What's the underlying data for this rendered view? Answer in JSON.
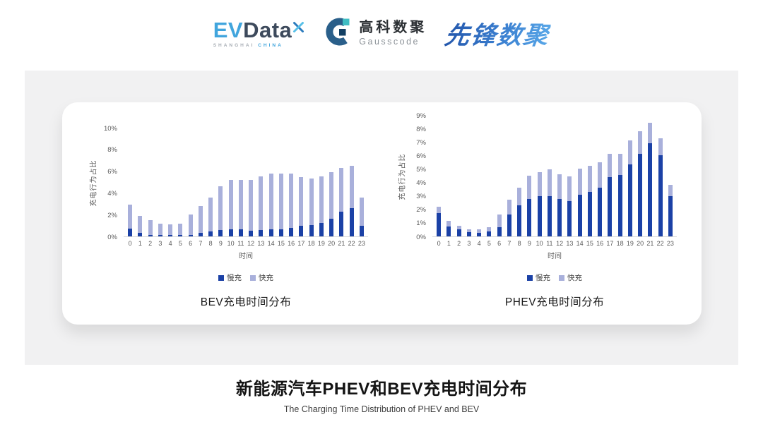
{
  "header": {
    "evdata": {
      "ev": "EV",
      "data": "Data",
      "sub_left": "SHANGHAI",
      "sub_right": "CHINA"
    },
    "gausscode": {
      "cn": "高科数聚",
      "en": "Gausscode"
    },
    "pioneer": "先锋数聚"
  },
  "footer": {
    "title": "新能源汽车PHEV和BEV充电时间分布",
    "subtitle": "The Charging Time Distribution of PHEV and BEV"
  },
  "colors": {
    "slow_charge": "#1b41a6",
    "fast_charge": "#a9b0db",
    "axis_line": "#d9d9d9",
    "band_background": "#f1f1f2"
  },
  "chart_data": [
    {
      "type": "bar",
      "stacked": true,
      "title": "BEV充电时间分布",
      "ylabel": "充电行为占比",
      "xlabel": "时间",
      "grid": false,
      "legend_position": "bottom",
      "ylim": [
        0,
        10
      ],
      "yticks": [
        "0%",
        "2%",
        "4%",
        "6%",
        "8%",
        "10%"
      ],
      "categories": [
        "0",
        "1",
        "2",
        "3",
        "4",
        "5",
        "6",
        "7",
        "8",
        "9",
        "10",
        "11",
        "12",
        "13",
        "14",
        "15",
        "16",
        "17",
        "18",
        "19",
        "20",
        "21",
        "22",
        "23"
      ],
      "series": [
        {
          "name": "慢充",
          "color": "#1b41a6",
          "values": [
            0.7,
            0.3,
            0.15,
            0.1,
            0.1,
            0.1,
            0.15,
            0.3,
            0.45,
            0.6,
            0.65,
            0.65,
            0.55,
            0.6,
            0.65,
            0.65,
            0.8,
            0.95,
            1.05,
            1.25,
            1.6,
            2.3,
            2.6,
            0.95
          ]
        },
        {
          "name": "快充",
          "color": "#a9b0db",
          "values": [
            2.2,
            1.6,
            1.35,
            1.1,
            1.0,
            1.1,
            1.85,
            2.5,
            3.15,
            4.0,
            4.55,
            4.55,
            4.65,
            4.95,
            5.15,
            5.1,
            5.0,
            4.5,
            4.25,
            4.3,
            4.3,
            4.0,
            3.9,
            2.6
          ]
        }
      ]
    },
    {
      "type": "bar",
      "stacked": true,
      "title": "PHEV充电时间分布",
      "ylabel": "充电行为占比",
      "xlabel": "时间",
      "grid": false,
      "legend_position": "bottom",
      "ylim": [
        0,
        9
      ],
      "yticks": [
        "0%",
        "1%",
        "2%",
        "3%",
        "4%",
        "5%",
        "6%",
        "7%",
        "8%",
        "9%"
      ],
      "categories": [
        "0",
        "1",
        "2",
        "3",
        "4",
        "5",
        "6",
        "7",
        "8",
        "9",
        "10",
        "11",
        "12",
        "13",
        "14",
        "15",
        "16",
        "17",
        "18",
        "19",
        "20",
        "21",
        "22",
        "23"
      ],
      "series": [
        {
          "name": "慢充",
          "color": "#1b41a6",
          "values": [
            1.75,
            0.75,
            0.5,
            0.3,
            0.25,
            0.35,
            0.7,
            1.6,
            2.3,
            2.8,
            3.0,
            3.0,
            2.8,
            2.6,
            3.1,
            3.3,
            3.6,
            4.4,
            4.55,
            5.35,
            6.1,
            6.9,
            6.0,
            3.0
          ]
        },
        {
          "name": "快充",
          "color": "#a9b0db",
          "values": [
            0.45,
            0.4,
            0.3,
            0.2,
            0.25,
            0.35,
            0.9,
            1.1,
            1.3,
            1.7,
            1.75,
            1.95,
            1.8,
            1.85,
            1.9,
            1.95,
            1.9,
            1.7,
            1.55,
            1.75,
            1.7,
            1.5,
            1.3,
            0.8
          ]
        }
      ]
    }
  ]
}
